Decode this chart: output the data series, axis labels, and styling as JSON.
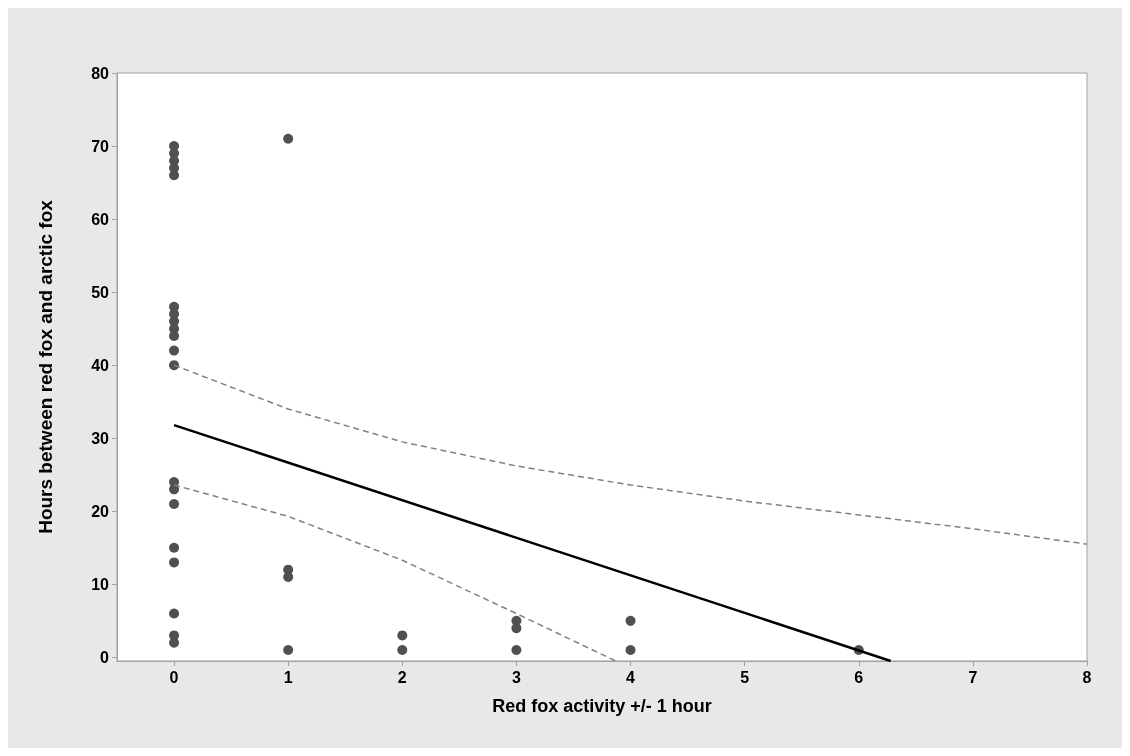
{
  "chart_data": {
    "type": "scatter",
    "xlabel": "Red fox activity +/- 1 hour",
    "ylabel": "Hours between red fox and arctic fox",
    "xlim": [
      -0.5,
      8
    ],
    "xticks": [
      0,
      1,
      2,
      3,
      4,
      5,
      6,
      7,
      8
    ],
    "ylim": [
      -0.5,
      80
    ],
    "yticks": [
      0,
      10,
      20,
      30,
      40,
      50,
      60,
      70,
      80
    ],
    "grid": false,
    "marker": "circle",
    "series": [
      {
        "color": "#505050",
        "x": [
          0,
          0,
          0,
          0,
          0,
          0,
          0,
          0,
          0,
          0,
          0,
          0,
          0,
          0,
          0,
          0,
          0,
          0,
          0,
          0,
          1,
          1,
          1,
          1,
          2,
          2,
          3,
          3,
          3,
          4,
          4,
          6
        ],
        "values": [
          70,
          69,
          68,
          67,
          66,
          48,
          47,
          46,
          45,
          44,
          42,
          40,
          24,
          23,
          21,
          15,
          13,
          6,
          3,
          2,
          71,
          12,
          11,
          1,
          3,
          1,
          5,
          4,
          1,
          5,
          1,
          1
        ]
      },
      {
        "type": "line",
        "color": "#000000",
        "line_style": "solid",
        "marker": "none",
        "x": [
          0,
          6.28
        ],
        "values": [
          31.8,
          -0.5
        ]
      },
      {
        "type": "line",
        "color": "#808080",
        "line_style": "dashed",
        "marker": "none",
        "x": [
          0,
          1,
          2,
          3,
          4,
          5,
          6,
          7,
          8
        ],
        "values": [
          40,
          34,
          29.5,
          26.2,
          23.6,
          21.4,
          19.5,
          17.6,
          15.5
        ]
      },
      {
        "type": "line",
        "color": "#808080",
        "line_style": "dashed",
        "marker": "none",
        "x": [
          0,
          1,
          2,
          3,
          3.87
        ],
        "values": [
          23.6,
          19.3,
          13.3,
          6,
          -0.5
        ]
      }
    ]
  }
}
